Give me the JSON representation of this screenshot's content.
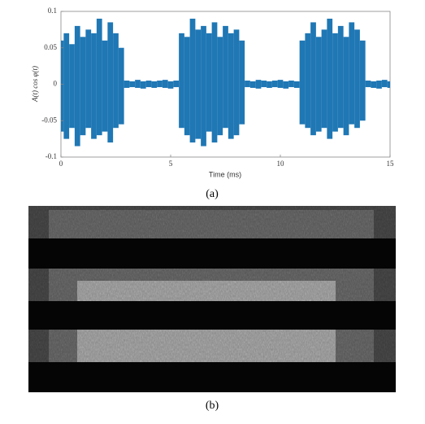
{
  "chart_data": {
    "type": "range",
    "y_label": "A(t) cos φ(t)",
    "x_label": "Time (ms)",
    "caption": "(a)",
    "x": [
      0,
      0.25,
      0.5,
      0.75,
      1,
      1.25,
      1.5,
      1.75,
      2,
      2.25,
      2.5,
      2.75,
      3,
      3.25,
      3.5,
      3.75,
      4,
      4.25,
      4.5,
      4.75,
      5,
      5.25,
      5.5,
      5.75,
      6,
      6.25,
      6.5,
      6.75,
      7,
      7.25,
      7.5,
      7.75,
      8,
      8.25,
      8.5,
      8.75,
      9,
      9.25,
      9.5,
      9.75,
      10,
      10.25,
      10.5,
      10.75,
      11,
      11.25,
      11.5,
      11.75,
      12,
      12.25,
      12.5,
      12.75,
      13,
      13.25,
      13.5,
      13.75,
      14,
      14.25,
      14.5,
      14.75,
      15
    ],
    "series": [
      {
        "color": "#1f77b4",
        "values": [
          0.06,
          0.07,
          0.055,
          0.08,
          0.065,
          0.075,
          0.07,
          0.09,
          0.06,
          0.085,
          0.07,
          0.05,
          0.005,
          0.004,
          0.006,
          0.004,
          0.005,
          0.004,
          0.005,
          0.006,
          0.004,
          0.005,
          0.07,
          0.065,
          0.09,
          0.075,
          0.08,
          0.07,
          0.085,
          0.065,
          0.08,
          0.07,
          0.075,
          0.06,
          0.005,
          0.004,
          0.006,
          0.005,
          0.004,
          0.005,
          0.006,
          0.004,
          0.005,
          0.004,
          0.06,
          0.07,
          0.085,
          0.065,
          0.075,
          0.09,
          0.07,
          0.08,
          0.065,
          0.085,
          0.075,
          0.06,
          0.005,
          0.004,
          0.005,
          0.006,
          0.004
        ]
      },
      {
        "color": "#1f77b4",
        "values": [
          -0.065,
          -0.075,
          -0.06,
          -0.085,
          -0.07,
          -0.06,
          -0.075,
          -0.07,
          -0.065,
          -0.08,
          -0.06,
          -0.055,
          -0.005,
          -0.004,
          -0.005,
          -0.006,
          -0.004,
          -0.005,
          -0.004,
          -0.005,
          -0.006,
          -0.004,
          -0.06,
          -0.07,
          -0.08,
          -0.075,
          -0.085,
          -0.065,
          -0.08,
          -0.07,
          -0.06,
          -0.075,
          -0.07,
          -0.055,
          -0.004,
          -0.005,
          -0.006,
          -0.004,
          -0.005,
          -0.004,
          -0.005,
          -0.006,
          -0.004,
          -0.005,
          -0.055,
          -0.06,
          -0.07,
          -0.065,
          -0.06,
          -0.075,
          -0.065,
          -0.06,
          -0.07,
          -0.055,
          -0.06,
          -0.05,
          -0.004,
          -0.005,
          -0.006,
          -0.004,
          -0.005
        ]
      }
    ],
    "xlim": [
      0,
      15
    ],
    "xticks": [
      0,
      5,
      10,
      15
    ],
    "ylim": [
      -0.1,
      0.1
    ],
    "yticks": [
      -0.1,
      -0.05,
      0,
      0.05,
      0.1
    ]
  },
  "figure_b": {
    "caption": "(b)"
  }
}
